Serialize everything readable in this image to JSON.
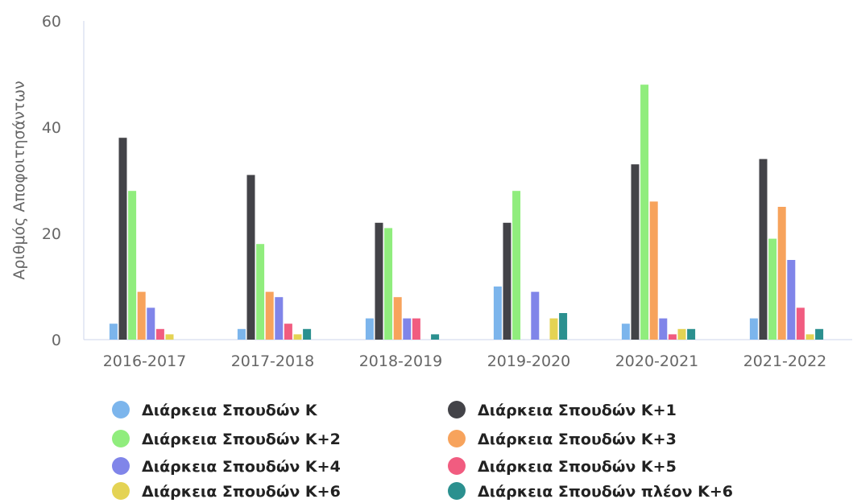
{
  "chart_data": {
    "type": "bar",
    "title": "",
    "xlabel": "",
    "ylabel": "Αριθμός Αποφοιτησάντων",
    "ylim": [
      0,
      60
    ],
    "yticks": [
      0,
      20,
      40,
      60
    ],
    "grid": false,
    "legend_position": "bottom",
    "categories": [
      "2016-2017",
      "2017-2018",
      "2018-2019",
      "2019-2020",
      "2020-2021",
      "2021-2022"
    ],
    "series": [
      {
        "name": "Διάρκεια Σπουδών Κ",
        "color": "#7cb5ec",
        "values": [
          3,
          2,
          4,
          10,
          3,
          4
        ]
      },
      {
        "name": "Διάρκεια Σπουδών Κ+1",
        "color": "#434348",
        "values": [
          38,
          31,
          22,
          22,
          33,
          34
        ]
      },
      {
        "name": "Διάρκεια Σπουδών Κ+2",
        "color": "#90ed7d",
        "values": [
          28,
          18,
          21,
          28,
          48,
          19
        ]
      },
      {
        "name": "Διάρκεια Σπουδών Κ+3",
        "color": "#f7a35c",
        "values": [
          9,
          9,
          8,
          0,
          26,
          25
        ]
      },
      {
        "name": "Διάρκεια Σπουδών Κ+4",
        "color": "#8085e9",
        "values": [
          6,
          8,
          4,
          9,
          4,
          15
        ]
      },
      {
        "name": "Διάρκεια Σπουδών Κ+5",
        "color": "#f15c80",
        "values": [
          2,
          3,
          4,
          0,
          1,
          6
        ]
      },
      {
        "name": "Διάρκεια Σπουδών Κ+6",
        "color": "#e4d354",
        "values": [
          1,
          1,
          0,
          4,
          2,
          1
        ]
      },
      {
        "name": "Διάρκεια Σπουδών πλέον Κ+6",
        "color": "#2b908f",
        "values": [
          0,
          2,
          1,
          5,
          2,
          2
        ]
      }
    ]
  }
}
